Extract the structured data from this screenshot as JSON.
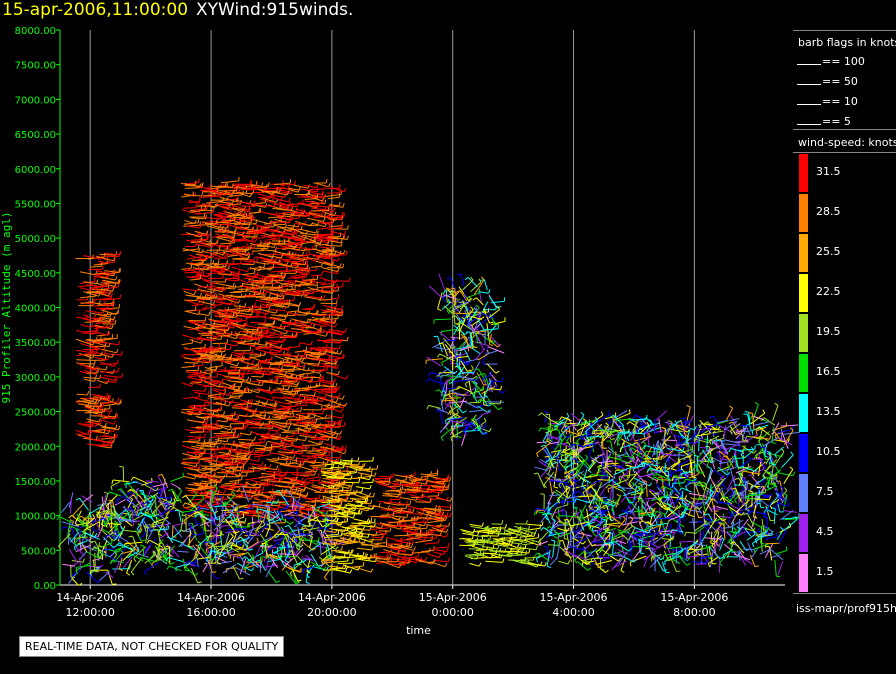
{
  "header": {
    "datetime": "15-apr-2006,11:00:00",
    "product": "XYWind:915winds."
  },
  "note": "REAL-TIME DATA, NOT CHECKED FOR QUALITY",
  "legend": {
    "flags_title": "barb flags in knots",
    "flags": [
      "== 100",
      "== 50",
      "== 10",
      "== 5"
    ],
    "speed_title": "wind-speed: knots",
    "speed_levels": [
      "31.5",
      "28.5",
      "25.5",
      "22.5",
      "19.5",
      "16.5",
      "13.5",
      "10.5",
      "7.5",
      "4.5",
      "1.5"
    ],
    "speed_colors": [
      "#ff0000",
      "#ff8000",
      "#ffaa00",
      "#ffff00",
      "#a0e020",
      "#00e000",
      "#00ffff",
      "#0000ff",
      "#6080ff",
      "#a020f0",
      "#ff80ff"
    ],
    "source": "iss-mapr/prof915h"
  },
  "chart_data": {
    "type": "scatter",
    "title": "XYWind:915winds.",
    "xlabel": "time",
    "ylabel": "915 Profiler Altitude (m agl)",
    "ylim": [
      0,
      8000
    ],
    "y_ticks": [
      "8000.00",
      "7500.00",
      "7000.00",
      "6500.00",
      "6000.00",
      "5500.00",
      "5000.00",
      "4500.00",
      "4000.00",
      "3500.00",
      "3000.00",
      "2500.00",
      "2000.00",
      "1500.00",
      "1000.00",
      "500.00",
      "0.00"
    ],
    "x_ticks": [
      {
        "date": "14-Apr-2006",
        "time": "12:00:00"
      },
      {
        "date": "14-Apr-2006",
        "time": "16:00:00"
      },
      {
        "date": "14-Apr-2006",
        "time": "20:00:00"
      },
      {
        "date": "15-Apr-2006",
        "time": "0:00:00"
      },
      {
        "date": "15-Apr-2006",
        "time": "4:00:00"
      },
      {
        "date": "15-Apr-2006",
        "time": "8:00:00"
      }
    ],
    "xlim_hours": [
      11.0,
      35.0
    ],
    "grid": "vertical",
    "clusters": [
      {
        "t": [
          11.3,
          12.9
        ],
        "z": [
          100,
          1200
        ],
        "speed": "mixed"
      },
      {
        "t": [
          11.5,
          12.5
        ],
        "z": [
          2000,
          4800
        ],
        "speed": 31.5
      },
      {
        "t": [
          12.8,
          14.8
        ],
        "z": [
          300,
          1500
        ],
        "speed": "mixed"
      },
      {
        "t": [
          15.0,
          20.0
        ],
        "z": [
          1000,
          5800
        ],
        "speed": 31.5
      },
      {
        "t": [
          15.0,
          20.0
        ],
        "z": [
          200,
          1200
        ],
        "speed": "mixed"
      },
      {
        "t": [
          19.6,
          21.0
        ],
        "z": [
          200,
          1800
        ],
        "speed": 25.5
      },
      {
        "t": [
          21.2,
          23.5
        ],
        "z": [
          300,
          1600
        ],
        "speed": 31.5
      },
      {
        "t": [
          23.6,
          25.3
        ],
        "z": [
          2200,
          4300
        ],
        "speed": "mixed"
      },
      {
        "t": [
          24.2,
          26.5
        ],
        "z": [
          300,
          900
        ],
        "speed": 22.5
      },
      {
        "t": [
          27.0,
          35.0
        ],
        "z": [
          300,
          2400
        ],
        "speed": "mixed"
      }
    ]
  }
}
